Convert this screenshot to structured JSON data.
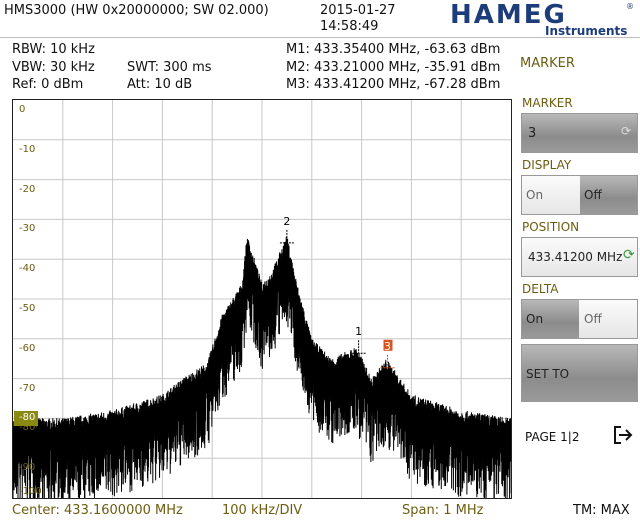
{
  "header": {
    "device": "HMS3000 (HW 0x20000000; SW 02.000)",
    "date": "2015-01-27",
    "time": "14:58:49",
    "brand": "HAMEG",
    "brand_sub": "Instruments",
    "brand_mark": "®"
  },
  "settings": {
    "rbw": "RBW: 10 kHz",
    "vbw": "VBW: 30 kHz",
    "ref": "Ref: 0 dBm",
    "swt": "SWT: 300 ms",
    "att": "Att: 10 dB"
  },
  "markers": [
    {
      "label": "M1: 433.35400 MHz, -63.63 dBm",
      "num": "1",
      "freq": 433.354,
      "level": -63.63
    },
    {
      "label": "M2: 433.21000 MHz, -35.91 dBm",
      "num": "2",
      "freq": 433.21,
      "level": -35.91
    },
    {
      "label": "M3: 433.41200 MHz, -67.28 dBm",
      "num": "3",
      "freq": 433.412,
      "level": -67.28
    }
  ],
  "plot": {
    "y_ticks": [
      "0",
      "-10",
      "-20",
      "-30",
      "-40",
      "-50",
      "-60",
      "-70",
      "-80",
      "-90",
      "-100"
    ],
    "ref_marker_label": "-80",
    "colors": {
      "trace": "#000000",
      "grid": "#c8c8c8",
      "marker_active": "#d9531e",
      "marker": "#000000",
      "label_bg": "#8a8a10"
    }
  },
  "menu": {
    "title": "MARKER",
    "marker_label": "MARKER",
    "marker_value": "3",
    "display_label": "DISPLAY",
    "display_on": "On",
    "display_off": "Off",
    "position_label": "POSITION",
    "position_value": "433.41200 MHz",
    "delta_label": "DELTA",
    "delta_on": "On",
    "delta_off": "Off",
    "set_to": "SET TO",
    "page": "PAGE 1|2",
    "page_icon": "exit-arrow-icon"
  },
  "footer": {
    "center": "Center: 433.1600000 MHz",
    "div": "100 kHz/DIV",
    "span": "Span: 1 MHz",
    "tm": "TM: MAX"
  },
  "chart_data": {
    "type": "line",
    "xlabel": "",
    "ylabel": "",
    "x_range_mhz": [
      432.66,
      433.66
    ],
    "ylim": [
      -100,
      0
    ],
    "grid": true,
    "series": [
      {
        "x": [
          432.66,
          432.76,
          432.86,
          432.96,
          433.0,
          433.05,
          433.08,
          433.12,
          433.13,
          433.16,
          433.18,
          433.21,
          433.23,
          433.26,
          433.3,
          433.35,
          433.38,
          433.41,
          433.46,
          433.56,
          433.66
        ],
        "values": [
          -82,
          -82,
          -80,
          -76,
          -72,
          -68,
          -56,
          -48,
          -36,
          -48,
          -45,
          -36,
          -48,
          -62,
          -67,
          -64,
          -72,
          -67,
          -76,
          -80,
          -82
        ]
      }
    ]
  }
}
